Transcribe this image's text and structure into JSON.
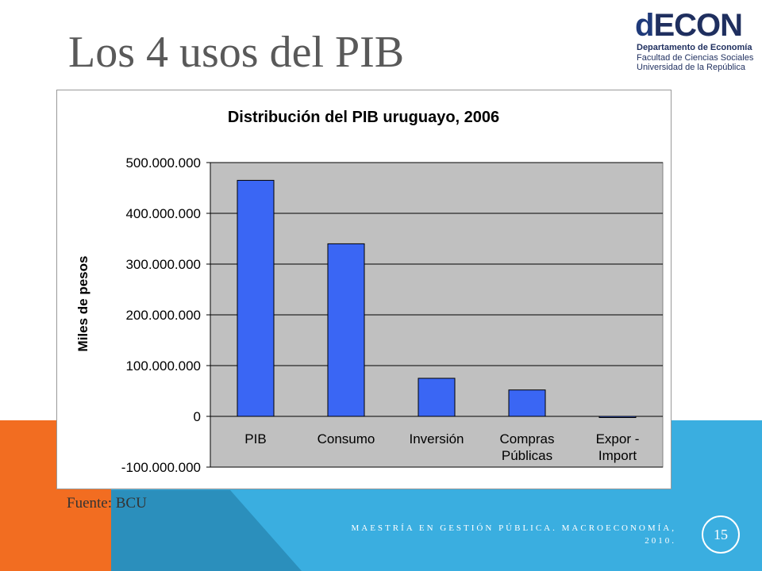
{
  "slide": {
    "title": "Los 4 usos del PIB",
    "source": "Fuente: BCU",
    "footer_line1": "MAESTRÍA EN GESTIÓN PÚBLICA. MACROECONOMÍA,",
    "footer_line2": "2010.",
    "page_number": "15"
  },
  "logo": {
    "mark_d": "d",
    "mark_rest": "ECON",
    "line1": "Departamento de Economía",
    "line2": "Facultad de Ciencias Sociales",
    "line3": "Universidad de la República"
  },
  "colors": {
    "bar": "#3a66f4",
    "plot_bg": "#c0c0c0",
    "orange": "#f26d21",
    "blue": "#3aaee0",
    "dark_blue": "#2b8fbc"
  },
  "chart_data": {
    "type": "bar",
    "title": "Distribución del PIB uruguayo, 2006",
    "ylabel": "Miles de pesos",
    "xlabel": "",
    "categories": [
      [
        "PIB"
      ],
      [
        "Consumo"
      ],
      [
        "Inversión"
      ],
      [
        "Compras",
        "Públicas"
      ],
      [
        "Expor -",
        "Import"
      ]
    ],
    "values": [
      465000000,
      340000000,
      75000000,
      52000000,
      -2000000
    ],
    "ylim": [
      -100000000,
      500000000
    ],
    "yticks": [
      500000000,
      400000000,
      300000000,
      200000000,
      100000000,
      0,
      -100000000
    ],
    "ytick_labels": [
      "500.000.000",
      "400.000.000",
      "300.000.000",
      "200.000.000",
      "100.000.000",
      "0",
      "-100.000.000"
    ],
    "grid": true,
    "legend": "none"
  }
}
